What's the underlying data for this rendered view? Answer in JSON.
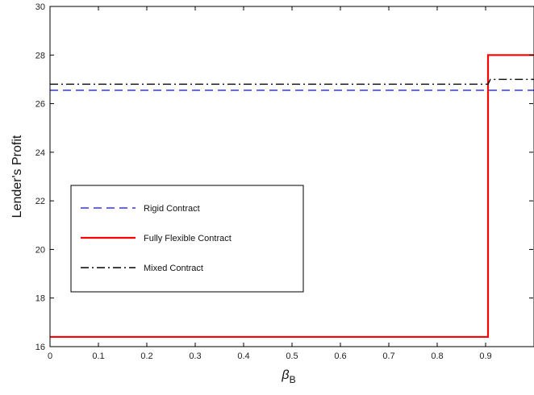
{
  "chart_data": {
    "type": "line",
    "title": "",
    "xlabel": "β",
    "xlabel_subscript": "B",
    "ylabel": "Lender's Profit",
    "xlim": [
      0,
      1
    ],
    "ylim": [
      16,
      30
    ],
    "x_ticks": [
      "0",
      "0.1",
      "0.2",
      "0.3",
      "0.4",
      "0.5",
      "0.6",
      "0.7",
      "0.8",
      "0.9"
    ],
    "y_ticks": [
      "16",
      "18",
      "20",
      "22",
      "24",
      "26",
      "28",
      "30"
    ],
    "grid": false,
    "legend_position": "center-left",
    "series": [
      {
        "name": "Rigid Contract",
        "color": "#3333ff",
        "style": "dashed",
        "points": [
          [
            0,
            26.55
          ],
          [
            1,
            26.55
          ]
        ]
      },
      {
        "name": "Fully Flexible Contract",
        "color": "#ff0000",
        "style": "solid",
        "points": [
          [
            0,
            16.4
          ],
          [
            0.905,
            16.4
          ],
          [
            0.905,
            28.0
          ],
          [
            1,
            28.0
          ]
        ]
      },
      {
        "name": "Mixed Contract",
        "color": "#000000",
        "style": "dashdot",
        "points": [
          [
            0,
            26.8
          ],
          [
            0.905,
            26.8
          ],
          [
            0.91,
            27.0
          ],
          [
            1,
            27.0
          ]
        ]
      }
    ]
  }
}
